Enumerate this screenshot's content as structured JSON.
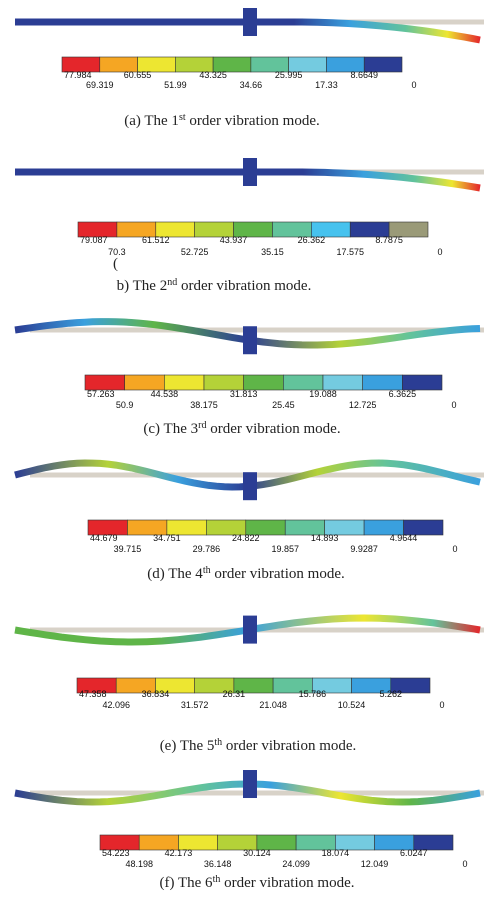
{
  "panels": [
    {
      "top": [
        "77.984",
        "60.655",
        "43.325",
        "25.995",
        "8.6649"
      ],
      "bottom": [
        "69.319",
        "51.99",
        "34.66",
        "17.33",
        "0"
      ],
      "caption": {
        "pre": "(a) The 1",
        "sup": "st",
        "post": " order vibration mode."
      }
    },
    {
      "top": [
        "79.087",
        "61.512",
        "43.937",
        "26.362",
        "8.7875"
      ],
      "bottom": [
        "70.3",
        "52.725",
        "35.15",
        "17.575",
        "0"
      ],
      "stray": "(",
      "caption": {
        "pre": "b) The 2",
        "sup": "nd",
        "post": " order vibration mode."
      }
    },
    {
      "top": [
        "57.263",
        "44.538",
        "31.813",
        "19.088",
        "6.3625"
      ],
      "bottom": [
        "50.9",
        "38.175",
        "25.45",
        "12.725",
        "0"
      ],
      "caption": {
        "pre": "(c) The 3",
        "sup": "rd",
        "post": " order vibration mode."
      }
    },
    {
      "top": [
        "44.679",
        "34.751",
        "24.822",
        "14.893",
        "4.9644"
      ],
      "bottom": [
        "39.715",
        "29.786",
        "19.857",
        "9.9287",
        "0"
      ],
      "caption": {
        "pre": "(d) The 4",
        "sup": "th",
        "post": " order vibration mode."
      }
    },
    {
      "top": [
        "47.358",
        "36.834",
        "26.31",
        "15.786",
        "5.262"
      ],
      "bottom": [
        "42.096",
        "31.572",
        "21.048",
        "10.524",
        "0"
      ],
      "caption": {
        "pre": "(e) The 5",
        "sup": "th",
        "post": " order vibration mode."
      }
    },
    {
      "top": [
        "54.223",
        "42.173",
        "30.124",
        "18.074",
        "6.0247"
      ],
      "bottom": [
        "48.198",
        "36.148",
        "24.099",
        "12.049",
        "0"
      ],
      "caption": {
        "pre": "(f) The 6",
        "sup": "th",
        "post": " order vibration mode."
      }
    }
  ]
}
